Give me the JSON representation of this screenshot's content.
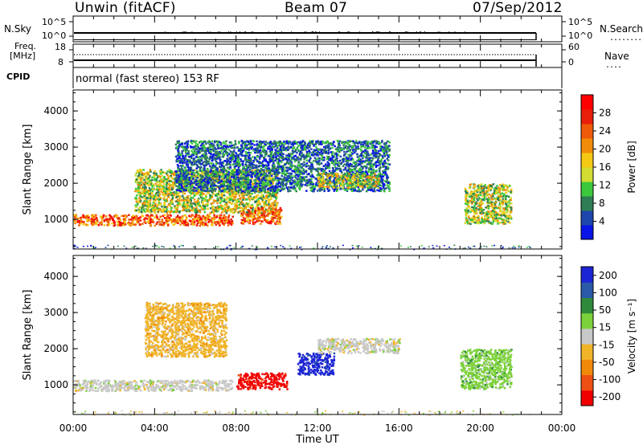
{
  "header": {
    "radar": "Unwin (fitACF)",
    "beam": "Beam 07",
    "date": "07/Sep/2012"
  },
  "strips": {
    "nsky_label": "N.Sky",
    "nsky_ticks": [
      "10^5",
      "10^0"
    ],
    "nsearch_label": "N.Search",
    "nsearch_ticks": [
      "10^5",
      "10^0"
    ],
    "freq_label_1": "Freq.",
    "freq_label_2": "[MHz]",
    "freq_ticks": [
      "18",
      "8"
    ],
    "nave_label": "Nave",
    "nave_ticks": [
      "60",
      "0"
    ],
    "cpid_label": "CPID",
    "cpid_text": "normal (fast stereo) 153 RF"
  },
  "time_axis": {
    "ticks": [
      "00:00",
      "04:00",
      "08:00",
      "12:00",
      "16:00",
      "20:00",
      "00:00"
    ],
    "label": "Time UT"
  },
  "chart_data": [
    {
      "type": "heatmap",
      "panel": "power",
      "ylabel": "Slant Range [km]",
      "yticks": [
        "1000",
        "2000",
        "3000",
        "4000"
      ],
      "ylim": [
        180,
        4580
      ],
      "xlim_hours": [
        0,
        24
      ],
      "colorbar_label": "Power [dB]",
      "colorbar_ticks": [
        "4",
        "8",
        "12",
        "16",
        "20",
        "24",
        "28"
      ],
      "colorbar_colors": [
        "#0a14e6",
        "#1e46aa",
        "#2e7d55",
        "#3cc83c",
        "#d2dc32",
        "#f5c814",
        "#f08c0a",
        "#ee5a0a",
        "#e61e0a",
        "#ff0000"
      ],
      "regions": [
        {
          "t": [
            0.0,
            7.8
          ],
          "r": [
            850,
            1150
          ],
          "level": "high",
          "note": "dense echo band"
        },
        {
          "t": [
            3.0,
            10.0
          ],
          "r": [
            1200,
            2400
          ],
          "level": "medium"
        },
        {
          "t": [
            5.0,
            15.5
          ],
          "r": [
            1800,
            3200
          ],
          "level": "low"
        },
        {
          "t": [
            8.2,
            10.2
          ],
          "r": [
            900,
            1350
          ],
          "level": "high"
        },
        {
          "t": [
            12.0,
            15.0
          ],
          "r": [
            1900,
            2300
          ],
          "level": "medium"
        },
        {
          "t": [
            19.2,
            21.5
          ],
          "r": [
            900,
            2000
          ],
          "level": "medium"
        }
      ]
    },
    {
      "type": "heatmap",
      "panel": "velocity",
      "ylabel": "Slant Range [km]",
      "yticks": [
        "1000",
        "2000",
        "3000",
        "4000"
      ],
      "ylim": [
        180,
        4580
      ],
      "xlim_hours": [
        0,
        24
      ],
      "colorbar_label": "Velocity [m s⁻¹]",
      "colorbar_ticks": [
        "200",
        "100",
        "50",
        "15",
        "-15",
        "-50",
        "-100",
        "-200"
      ],
      "colorbar_colors": [
        "#1c24d4",
        "#2a5aa8",
        "#2f8a3c",
        "#7cd23a",
        "#c8c8c8",
        "#f0b428",
        "#f0880a",
        "#ee5014",
        "#f00000"
      ],
      "regions": [
        {
          "t": [
            0.0,
            7.8
          ],
          "r": [
            850,
            1150
          ],
          "value": "-15..15",
          "note": "ground scatter (grey)"
        },
        {
          "t": [
            3.5,
            7.5
          ],
          "r": [
            1800,
            3300
          ],
          "value": "-50..-15"
        },
        {
          "t": [
            8.0,
            10.5
          ],
          "r": [
            900,
            1350
          ],
          "value": "< -200"
        },
        {
          "t": [
            11.0,
            12.8
          ],
          "r": [
            1300,
            1900
          ],
          "value": "> 200"
        },
        {
          "t": [
            12.0,
            16.0
          ],
          "r": [
            1900,
            2300
          ],
          "value": "-15..15"
        },
        {
          "t": [
            19.0,
            21.5
          ],
          "r": [
            900,
            2000
          ],
          "value": "15..50"
        }
      ]
    }
  ]
}
